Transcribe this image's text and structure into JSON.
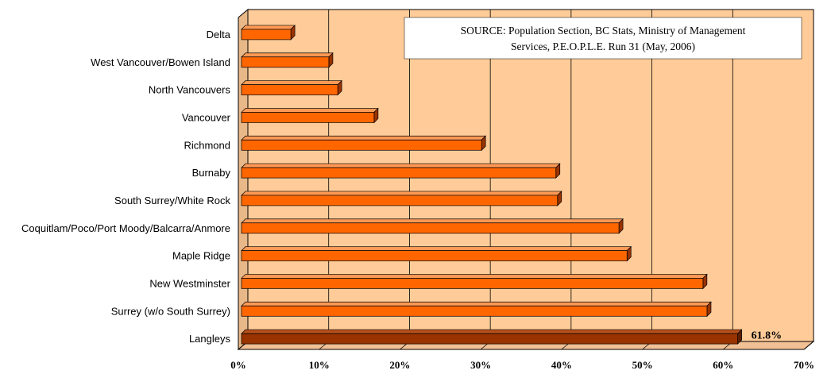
{
  "chart_data": {
    "type": "bar",
    "orientation": "horizontal",
    "categories": [
      "Delta",
      "West Vancouver/Bowen Island",
      "North Vancouvers",
      "Vancouver",
      "Richmond",
      "Burnaby",
      "South Surrey/White Rock",
      "Coquitlam/Poco/Port Moody/Balcarra/Anmore",
      "Maple Ridge",
      "New Westminster",
      "Surrey (w/o South Surrey)",
      "Langleys"
    ],
    "values": [
      6.5,
      11.2,
      12.3,
      16.8,
      30.1,
      39.3,
      39.5,
      47.1,
      48.1,
      57.5,
      58.0,
      61.8
    ],
    "xlim": [
      0,
      70
    ],
    "xticks": [
      0,
      10,
      20,
      30,
      40,
      50,
      60,
      70
    ],
    "tick_format": "{v}%",
    "highlight": {
      "category": "Langleys",
      "label": "61.8%"
    },
    "grid": true,
    "source_lines": [
      "SOURCE:  Population Section, BC Stats, Ministry of Management",
      "Services, P.E.O.P.L.E. Run 31 (May, 2006)"
    ],
    "colors": {
      "plot_bg": "#FFCC99",
      "bar_front": "#FF6600",
      "bar_top": "#FF9955",
      "bar_side": "#993300",
      "highlight_front": "#993300",
      "highlight_top": "#B8501C",
      "highlight_side": "#5C1F00",
      "gridline": "#000000"
    }
  }
}
